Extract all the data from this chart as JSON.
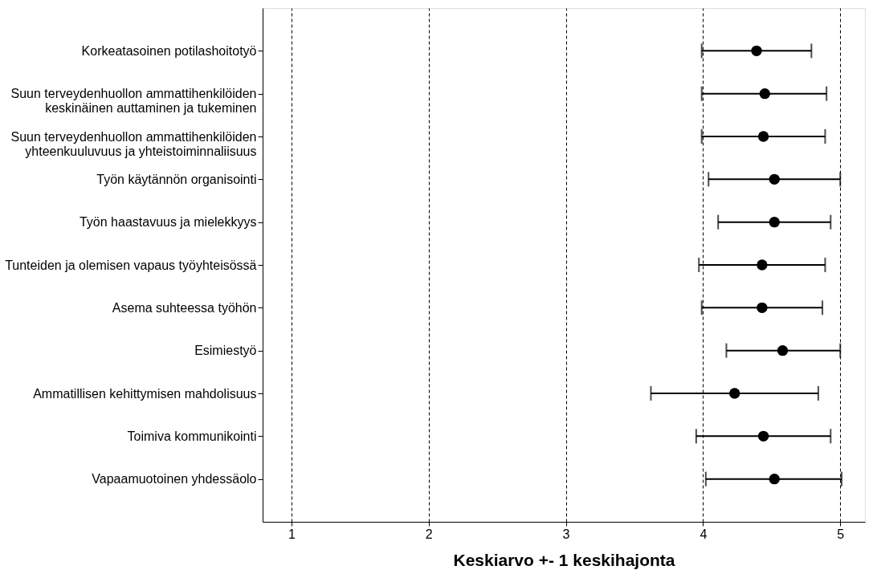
{
  "chart_data": {
    "type": "scatter",
    "orientation": "horizontal",
    "xlabel": "Keskiarvo +- 1 keskihajonta",
    "categories": [
      "Korkeatasoinen potilashoitotyö",
      "Suun terveydenhuollon ammattihenkilöiden\nkeskinäinen auttaminen ja tukeminen",
      "Suun terveydenhuollon ammattihenkilöiden\nyhteenkuuluvuus ja yhteistoiminnaliisuus",
      "Työn käytännön organisointi",
      "Työn haastavuus ja mielekkyys",
      "Tunteiden ja olemisen vapaus työyhteisössä",
      "Asema suhteessa työhön",
      "Esimiestyö",
      "Ammatillisen kehittymisen mahdolisuus",
      "Toimiva kommunikointi",
      "Vapaamuotoinen yhdessäolo"
    ],
    "values": [
      4.39,
      4.45,
      4.44,
      4.52,
      4.52,
      4.43,
      4.43,
      4.58,
      4.23,
      4.44,
      4.52
    ],
    "errors": [
      [
        3.99,
        4.79
      ],
      [
        3.99,
        4.9
      ],
      [
        3.99,
        4.89
      ],
      [
        4.04,
        5.0
      ],
      [
        4.11,
        4.93
      ],
      [
        3.97,
        4.89
      ],
      [
        3.99,
        4.87
      ],
      [
        4.17,
        5.0
      ],
      [
        3.62,
        4.84
      ],
      [
        3.95,
        4.93
      ],
      [
        4.02,
        5.01
      ]
    ],
    "color": "#000000",
    "marker": "circle",
    "xlim": [
      0.79,
      5.18
    ],
    "xticks": [
      {
        "value": 1,
        "label": "1"
      },
      {
        "value": 2,
        "label": "2"
      },
      {
        "value": 3,
        "label": "3"
      },
      {
        "value": 4,
        "label": "4"
      },
      {
        "value": 5,
        "label": "5"
      }
    ],
    "grid": "x"
  }
}
